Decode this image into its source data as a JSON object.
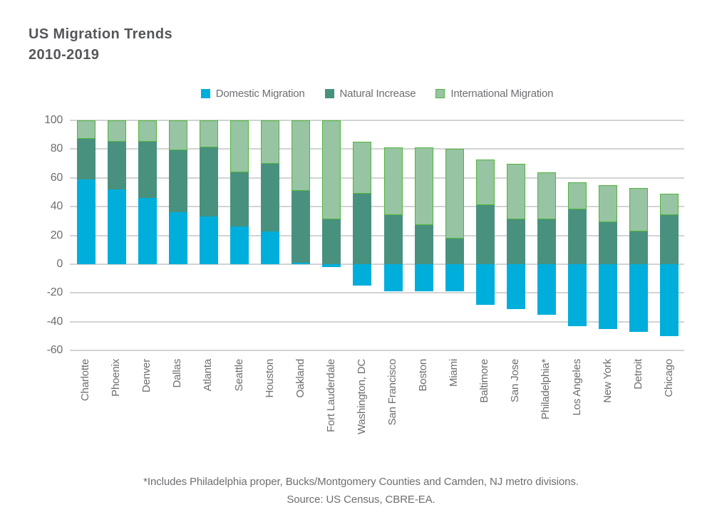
{
  "title": {
    "line1": "US Migration Trends",
    "line2": "2010-2019"
  },
  "legend": {
    "position": "top-center",
    "items": [
      {
        "label": "Domestic Migration",
        "color": "#00AEDC"
      },
      {
        "label": "Natural Increase",
        "color": "#48917E"
      },
      {
        "label": "International Migration",
        "color": "#97C4A2",
        "stroke": "#52B43C"
      }
    ]
  },
  "footnote": {
    "line1": "*Includes Philadelphia proper, Bucks/Montgomery Counties and Camden, NJ metro divisions.",
    "line2": "Source: US Census, CBRE-EA."
  },
  "chart_data": {
    "type": "bar",
    "stacked": true,
    "grid": "horizontal",
    "ylim": [
      -60,
      100
    ],
    "yticks": [
      100,
      80,
      60,
      40,
      20,
      0,
      -20,
      -40,
      -60
    ],
    "categories": [
      "Charlotte",
      "Phoenix",
      "Denver",
      "Dallas",
      "Atlanta",
      "Seattle",
      "Houston",
      "Oakland",
      "Fort Lauderdale",
      "Washington, DC",
      "San Francisco",
      "Boston",
      "Miami",
      "Baltimore",
      "San Jose",
      "Philadelphia*",
      "Los Angeles",
      "New York",
      "Detroit",
      "Chicago"
    ],
    "series": [
      {
        "name": "Domestic Migration",
        "color": "#00AEDC",
        "values": [
          59,
          52,
          46,
          36,
          33,
          26,
          23,
          1,
          -2,
          -15,
          -19,
          -19,
          -19,
          -28,
          -31,
          -35,
          -43,
          -45,
          -47,
          -50
        ]
      },
      {
        "name": "Natural Increase",
        "color": "#48917E",
        "values": [
          28,
          33,
          39,
          43,
          48,
          38,
          47,
          50,
          31,
          49,
          34,
          27,
          18,
          41,
          31,
          31,
          38,
          29,
          23,
          34
        ]
      },
      {
        "name": "International Migration",
        "color": "#97C4A2",
        "stroke": "#52B43C",
        "values": [
          13,
          15,
          15,
          21,
          19,
          36,
          30,
          49,
          69,
          36,
          47,
          54,
          62,
          32,
          39,
          33,
          19,
          26,
          30,
          15
        ]
      }
    ]
  }
}
